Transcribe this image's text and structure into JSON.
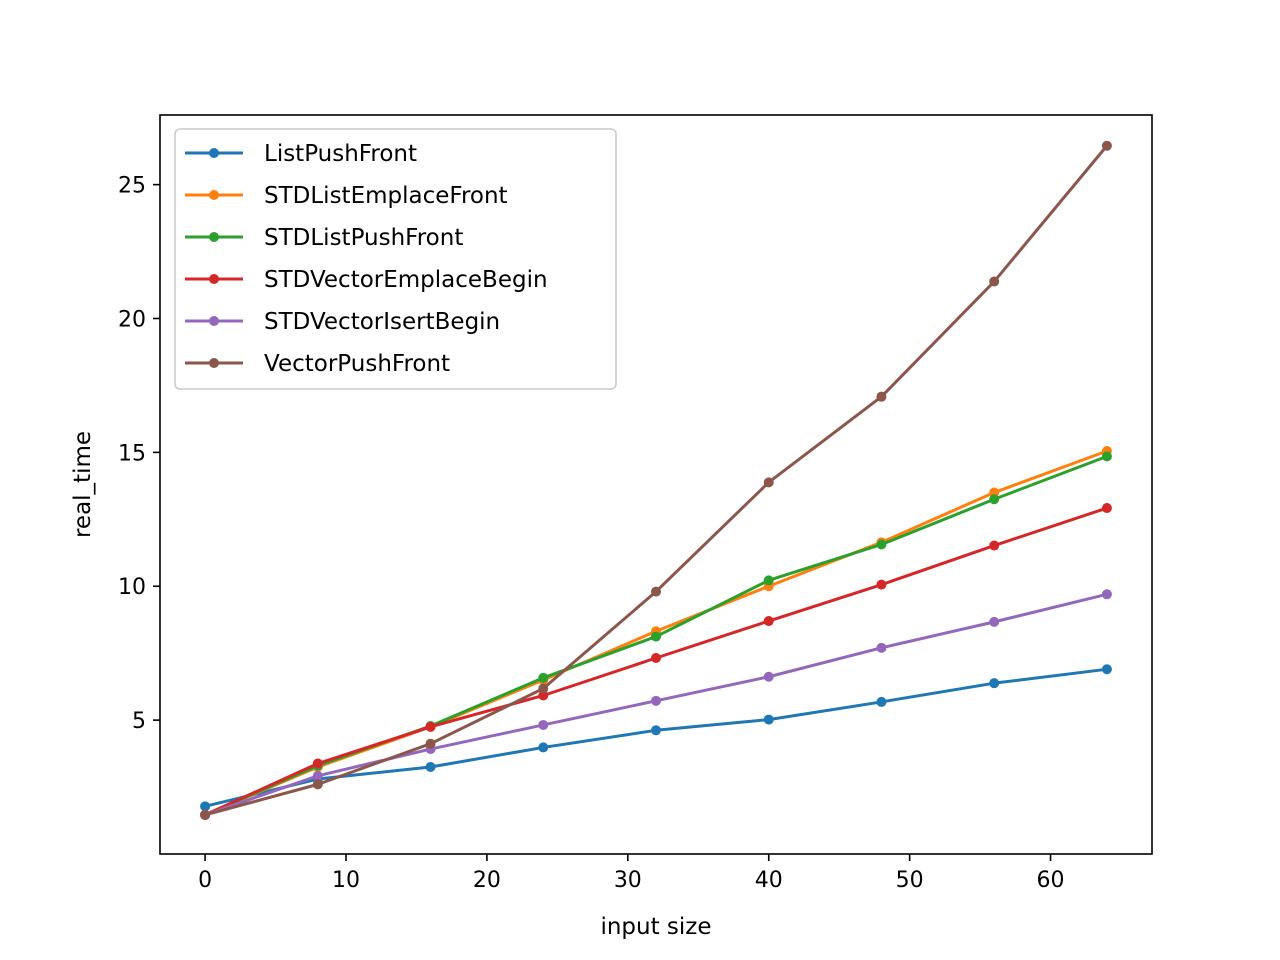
{
  "chart_data": {
    "type": "line",
    "title": "",
    "xlabel": "input size",
    "ylabel": "real_time",
    "xlim": [
      -3.2,
      67.2
    ],
    "ylim": [
      0.0,
      27.6
    ],
    "xticks": [
      0,
      10,
      20,
      30,
      40,
      50,
      60
    ],
    "yticks": [
      5,
      10,
      15,
      20,
      25
    ],
    "grid": false,
    "legend": "top-left",
    "x": [
      0,
      8,
      16,
      24,
      32,
      40,
      48,
      56,
      64
    ],
    "series": [
      {
        "name": "ListPushFront",
        "color": "#1f77b4",
        "values": [
          1.78,
          2.8,
          3.25,
          3.98,
          4.62,
          5.02,
          5.68,
          6.38,
          6.9
        ]
      },
      {
        "name": "STDListEmplaceFront",
        "color": "#ff7f0e",
        "values": [
          1.46,
          3.25,
          4.75,
          6.5,
          8.32,
          10.0,
          11.64,
          13.5,
          15.05
        ]
      },
      {
        "name": "STDListPushFront",
        "color": "#2ca02c",
        "values": [
          1.46,
          3.3,
          4.78,
          6.58,
          8.12,
          10.22,
          11.56,
          13.25,
          14.85
        ]
      },
      {
        "name": "STDVectorEmplaceBegin",
        "color": "#d62728",
        "values": [
          1.46,
          3.38,
          4.75,
          5.92,
          7.32,
          8.7,
          10.06,
          11.52,
          12.92
        ]
      },
      {
        "name": "STDVectorIsertBegin",
        "color": "#9467bd",
        "values": [
          1.46,
          2.92,
          3.92,
          4.82,
          5.72,
          6.62,
          7.7,
          8.67,
          9.7
        ]
      },
      {
        "name": "VectorPushFront",
        "color": "#8c564b",
        "values": [
          1.46,
          2.6,
          4.12,
          6.18,
          9.8,
          13.88,
          17.08,
          21.38,
          26.45
        ]
      }
    ]
  }
}
